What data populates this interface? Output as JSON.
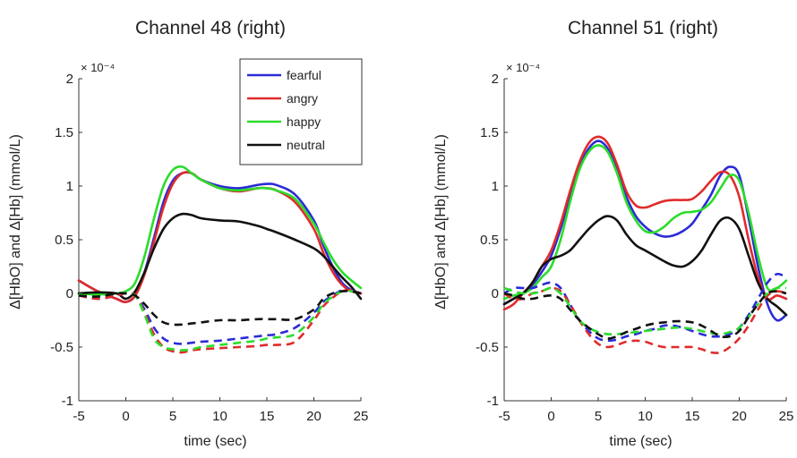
{
  "colors": {
    "fearful": "#2b2bd6",
    "angry": "#e02b2b",
    "happy": "#2bdc2b",
    "neutral": "#111111"
  },
  "chart_data": [
    {
      "type": "line",
      "title": "Channel 48 (right)",
      "xlabel": "time (sec)",
      "ylabel": "Δ[HbO] and Δ[Hb] (mmol/L)",
      "y_exponent": "× 10⁻⁴",
      "xlim": [
        -5,
        25
      ],
      "ylim": [
        -1,
        2
      ],
      "xticks": [
        "-5",
        "0",
        "5",
        "10",
        "15",
        "20",
        "25"
      ],
      "yticks": [
        "-1",
        "-0.5",
        "0",
        "0.5",
        "1",
        "1.5",
        "2"
      ],
      "grid": false,
      "legend_position": "top-right",
      "legend": [
        "fearful",
        "angry",
        "happy",
        "neutral"
      ],
      "x": [
        -5,
        -3,
        -1,
        0,
        1,
        2,
        3,
        4,
        5,
        6,
        7,
        8,
        10,
        12,
        14,
        15,
        16,
        18,
        20,
        21,
        22,
        23,
        24,
        25
      ],
      "series": [
        {
          "name": "fearful",
          "type": "HbO",
          "values": [
            0.12,
            0.02,
            -0.05,
            -0.08,
            -0.02,
            0.2,
            0.52,
            0.85,
            1.05,
            1.12,
            1.12,
            1.06,
            1.0,
            0.98,
            1.01,
            1.02,
            1.01,
            0.92,
            0.68,
            0.45,
            0.25,
            0.1,
            0.03,
            0.0
          ]
        },
        {
          "name": "angry",
          "type": "HbO",
          "values": [
            0.12,
            0.02,
            -0.05,
            -0.08,
            -0.02,
            0.18,
            0.48,
            0.8,
            1.02,
            1.12,
            1.12,
            1.06,
            0.98,
            0.95,
            0.98,
            0.98,
            0.96,
            0.85,
            0.6,
            0.38,
            0.2,
            0.08,
            0.02,
            0.0
          ]
        },
        {
          "name": "happy",
          "type": "HbO",
          "values": [
            0.0,
            -0.01,
            0.0,
            0.02,
            0.1,
            0.35,
            0.7,
            1.0,
            1.15,
            1.18,
            1.12,
            1.06,
            0.98,
            0.96,
            0.98,
            0.98,
            0.96,
            0.88,
            0.65,
            0.48,
            0.32,
            0.2,
            0.12,
            0.05
          ]
        },
        {
          "name": "neutral",
          "type": "HbO",
          "values": [
            0.0,
            0.01,
            0.0,
            -0.05,
            0.02,
            0.2,
            0.42,
            0.6,
            0.7,
            0.74,
            0.73,
            0.7,
            0.68,
            0.67,
            0.63,
            0.6,
            0.57,
            0.5,
            0.42,
            0.35,
            0.25,
            0.15,
            0.06,
            -0.05
          ]
        },
        {
          "name": "fearful",
          "type": "Hb",
          "dashed": true,
          "values": [
            -0.02,
            -0.05,
            -0.02,
            0.0,
            -0.02,
            -0.15,
            -0.32,
            -0.42,
            -0.46,
            -0.47,
            -0.46,
            -0.45,
            -0.44,
            -0.42,
            -0.4,
            -0.39,
            -0.38,
            -0.32,
            -0.18,
            -0.08,
            -0.02,
            0.03,
            0.03,
            0.0
          ]
        },
        {
          "name": "angry",
          "type": "Hb",
          "dashed": true,
          "values": [
            -0.02,
            -0.05,
            -0.02,
            0.0,
            -0.02,
            -0.18,
            -0.38,
            -0.5,
            -0.54,
            -0.55,
            -0.53,
            -0.52,
            -0.51,
            -0.5,
            -0.49,
            -0.48,
            -0.48,
            -0.45,
            -0.25,
            -0.12,
            -0.04,
            0.02,
            0.03,
            0.0
          ]
        },
        {
          "name": "happy",
          "type": "Hb",
          "dashed": true,
          "values": [
            -0.01,
            -0.03,
            0.0,
            0.0,
            -0.02,
            -0.2,
            -0.42,
            -0.5,
            -0.52,
            -0.53,
            -0.52,
            -0.5,
            -0.48,
            -0.46,
            -0.44,
            -0.42,
            -0.41,
            -0.38,
            -0.22,
            -0.1,
            -0.03,
            0.02,
            0.02,
            0.0
          ]
        },
        {
          "name": "neutral",
          "type": "Hb",
          "dashed": true,
          "values": [
            -0.02,
            -0.03,
            0.0,
            0.0,
            -0.02,
            -0.1,
            -0.2,
            -0.27,
            -0.29,
            -0.29,
            -0.28,
            -0.27,
            -0.25,
            -0.25,
            -0.24,
            -0.24,
            -0.24,
            -0.24,
            -0.15,
            -0.05,
            0.0,
            0.02,
            0.02,
            0.0
          ]
        }
      ]
    },
    {
      "type": "line",
      "title": "Channel 51 (right)",
      "xlabel": "time (sec)",
      "ylabel": "Δ[HbO] and Δ[Hb] (mmol/L)",
      "y_exponent": "× 10⁻⁴",
      "xlim": [
        -5,
        25
      ],
      "ylim": [
        -1,
        2
      ],
      "xticks": [
        "-5",
        "0",
        "5",
        "10",
        "15",
        "20",
        "25"
      ],
      "yticks": [
        "-1",
        "-0.5",
        "0",
        "0.5",
        "1",
        "1.5",
        "2"
      ],
      "grid": false,
      "x": [
        -5,
        -4,
        -3,
        -2,
        -1,
        0,
        1,
        2,
        3,
        4,
        5,
        6,
        7,
        8,
        9,
        10,
        11,
        12,
        13,
        14,
        15,
        16,
        17,
        18,
        19,
        20,
        21,
        22,
        23,
        24,
        25
      ],
      "series": [
        {
          "name": "fearful",
          "type": "HbO",
          "values": [
            -0.1,
            -0.05,
            0.0,
            0.08,
            0.2,
            0.35,
            0.6,
            0.9,
            1.18,
            1.35,
            1.42,
            1.35,
            1.15,
            0.9,
            0.72,
            0.62,
            0.56,
            0.53,
            0.54,
            0.58,
            0.65,
            0.78,
            0.92,
            1.1,
            1.18,
            1.1,
            0.7,
            0.25,
            -0.1,
            -0.25,
            -0.2
          ]
        },
        {
          "name": "angry",
          "type": "HbO",
          "values": [
            -0.15,
            -0.1,
            0.0,
            0.1,
            0.25,
            0.4,
            0.65,
            0.95,
            1.22,
            1.4,
            1.46,
            1.4,
            1.2,
            0.95,
            0.82,
            0.8,
            0.83,
            0.86,
            0.87,
            0.87,
            0.88,
            0.95,
            1.05,
            1.13,
            1.1,
            0.9,
            0.5,
            0.15,
            -0.05,
            -0.02,
            -0.05
          ]
        },
        {
          "name": "happy",
          "type": "HbO",
          "values": [
            -0.05,
            -0.02,
            0.0,
            0.05,
            0.15,
            0.25,
            0.5,
            0.85,
            1.15,
            1.32,
            1.38,
            1.32,
            1.12,
            0.85,
            0.68,
            0.58,
            0.57,
            0.62,
            0.7,
            0.75,
            0.76,
            0.78,
            0.85,
            0.98,
            1.1,
            1.05,
            0.75,
            0.35,
            0.05,
            0.05,
            0.12
          ]
        },
        {
          "name": "neutral",
          "type": "HbO",
          "values": [
            -0.1,
            -0.05,
            0.0,
            0.1,
            0.25,
            0.32,
            0.35,
            0.4,
            0.5,
            0.6,
            0.68,
            0.72,
            0.68,
            0.55,
            0.45,
            0.4,
            0.35,
            0.3,
            0.26,
            0.25,
            0.3,
            0.4,
            0.55,
            0.68,
            0.7,
            0.6,
            0.35,
            0.1,
            -0.05,
            -0.12,
            -0.2
          ]
        },
        {
          "name": "fearful",
          "type": "Hb",
          "dashed": true,
          "values": [
            0.0,
            0.05,
            0.05,
            0.05,
            0.08,
            0.1,
            0.05,
            -0.1,
            -0.25,
            -0.35,
            -0.42,
            -0.44,
            -0.43,
            -0.4,
            -0.38,
            -0.35,
            -0.33,
            -0.3,
            -0.3,
            -0.32,
            -0.35,
            -0.38,
            -0.4,
            -0.4,
            -0.38,
            -0.32,
            -0.2,
            -0.05,
            0.1,
            0.18,
            0.15
          ]
        },
        {
          "name": "angry",
          "type": "Hb",
          "dashed": true,
          "values": [
            0.0,
            -0.05,
            -0.05,
            0.0,
            0.02,
            0.05,
            0.02,
            -0.1,
            -0.25,
            -0.38,
            -0.47,
            -0.5,
            -0.48,
            -0.45,
            -0.44,
            -0.45,
            -0.48,
            -0.5,
            -0.5,
            -0.5,
            -0.5,
            -0.52,
            -0.55,
            -0.55,
            -0.5,
            -0.42,
            -0.3,
            -0.15,
            -0.02,
            0.02,
            0.0
          ]
        },
        {
          "name": "happy",
          "type": "Hb",
          "dashed": true,
          "values": [
            0.05,
            0.02,
            0.0,
            0.0,
            0.02,
            0.05,
            0.0,
            -0.12,
            -0.25,
            -0.32,
            -0.36,
            -0.38,
            -0.38,
            -0.37,
            -0.36,
            -0.35,
            -0.34,
            -0.33,
            -0.32,
            -0.32,
            -0.33,
            -0.35,
            -0.37,
            -0.38,
            -0.36,
            -0.32,
            -0.22,
            -0.1,
            0.0,
            0.05,
            0.05
          ]
        },
        {
          "name": "neutral",
          "type": "Hb",
          "dashed": true,
          "values": [
            0.0,
            -0.02,
            -0.05,
            -0.05,
            -0.03,
            -0.02,
            -0.05,
            -0.15,
            -0.25,
            -0.32,
            -0.38,
            -0.42,
            -0.4,
            -0.36,
            -0.33,
            -0.3,
            -0.28,
            -0.27,
            -0.26,
            -0.26,
            -0.27,
            -0.3,
            -0.35,
            -0.4,
            -0.4,
            -0.35,
            -0.22,
            -0.1,
            0.0,
            0.02,
            0.0
          ]
        }
      ]
    }
  ]
}
